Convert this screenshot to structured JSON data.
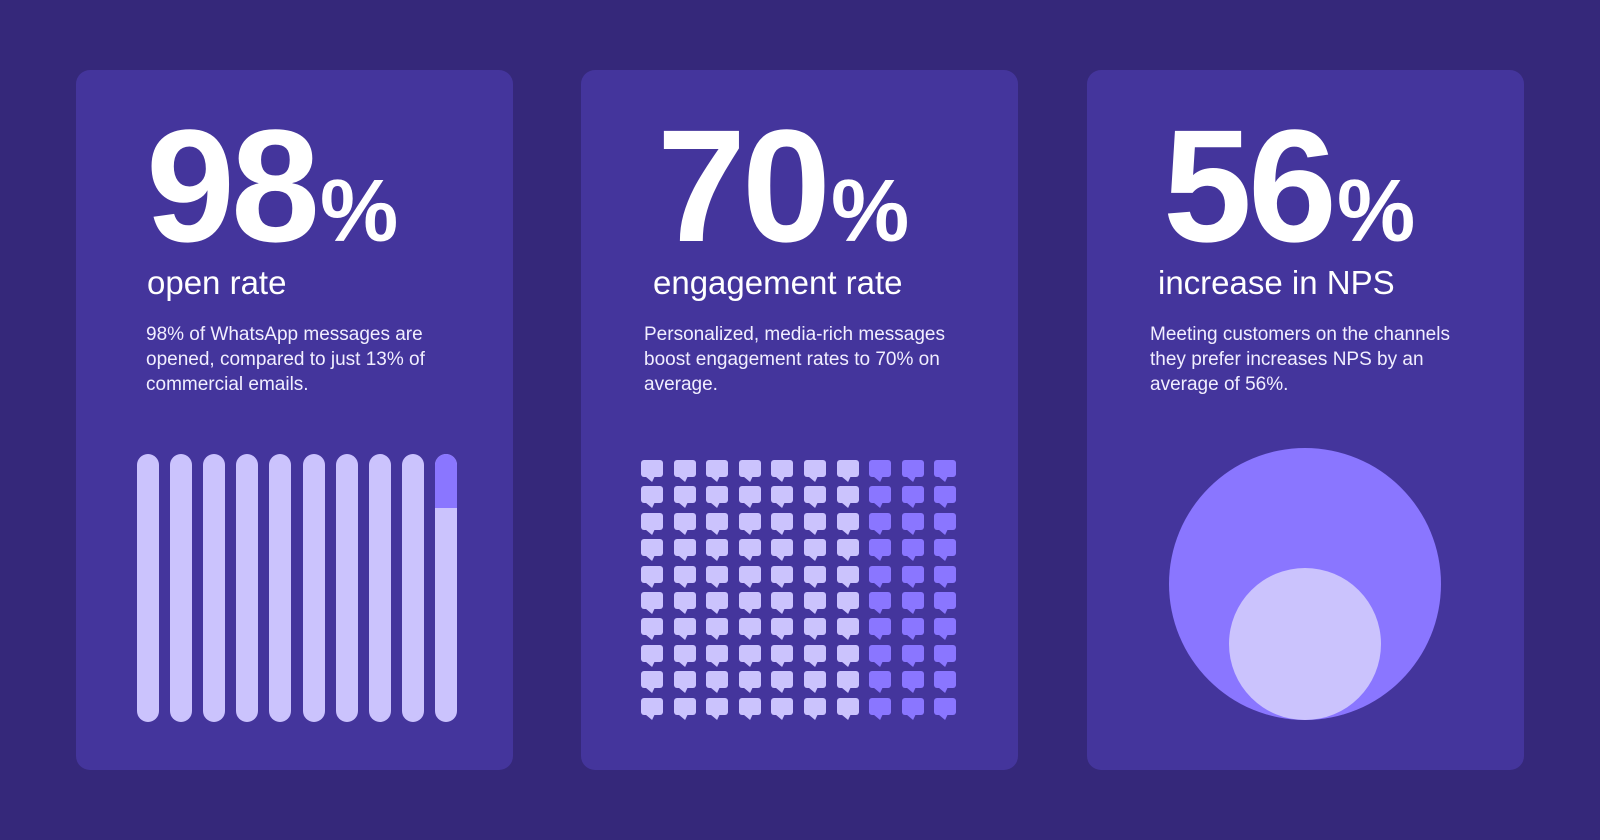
{
  "colors": {
    "background": "#35287a",
    "card": "#44359c",
    "light": "#cbc3fd",
    "accent": "#8a76ff"
  },
  "cards": [
    {
      "number": "98",
      "percent": "%",
      "label": "open rate",
      "description": "98% of WhatsApp messages are opened, compared to just 13% of commercial emails.",
      "visual": {
        "type": "bar-strips",
        "bars": 10,
        "filled_fraction": 0.98
      }
    },
    {
      "number": "70",
      "percent": "%",
      "label": "engagement rate",
      "description": "Personalized, media-rich messages boost engagement rates to 70% on average.",
      "visual": {
        "type": "icon-grid",
        "icon": "chat-bubble-icon",
        "rows": 10,
        "cols": 10,
        "highlighted_percent": 70
      }
    },
    {
      "number": "56",
      "percent": "%",
      "label": "increase in NPS",
      "description": "Meeting customers on the channels they prefer increases NPS by an average of 56%.",
      "visual": {
        "type": "nested-circles",
        "inner_fraction": 0.56
      }
    }
  ]
}
